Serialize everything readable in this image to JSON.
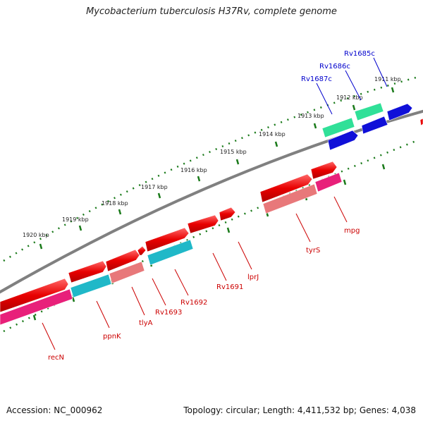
{
  "title": "Mycobacterium tuberculosis H37Rv, complete genome",
  "footer": {
    "accession": "Accession: NC_000962",
    "summary": "Topology: circular; Length: 4,411,532 bp; Genes: 4,038"
  },
  "ruler": {
    "tick_labels": [
      "1911 kbp",
      "1912 kbp",
      "1913 kbp",
      "1914 kbp",
      "1915 kbp",
      "1916 kbp",
      "1917 kbp",
      "1918 kbp",
      "1919 kbp",
      "1920 kbp"
    ]
  },
  "colors": {
    "backbone": "#808080",
    "tick": "#1a7a1a",
    "gene_red": "#e80000",
    "gene_pink": "#e8207a",
    "gene_salmon": "#e8787a",
    "gene_cyan": "#20b8c8",
    "gene_blue": "#1010d8",
    "gene_mint": "#30e098",
    "label_red": "#cc0000",
    "label_blue": "#0000cc"
  },
  "gene_labels_blue": [
    "Rv1685c",
    "Rv1686c",
    "Rv1687c"
  ],
  "gene_labels_red": [
    "mpg",
    "tyrS",
    "lprJ",
    "Rv1691",
    "Rv1692",
    "Rv1693",
    "tlyA",
    "ppnK",
    "recN"
  ]
}
